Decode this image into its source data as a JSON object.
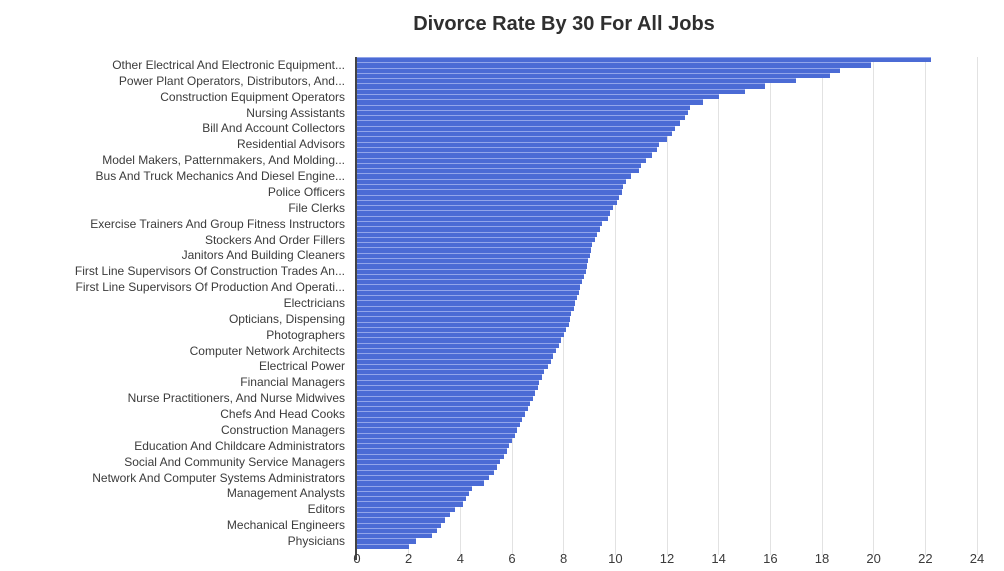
{
  "title": "Divorce Rate By 30 For All Jobs",
  "chart_data": {
    "type": "bar",
    "orientation": "horizontal",
    "title": "Divorce Rate By 30 For All Jobs",
    "xlabel": "",
    "ylabel": "",
    "xlim": [
      0,
      24
    ],
    "x_ticks": [
      0,
      2,
      4,
      6,
      8,
      10,
      12,
      14,
      16,
      18,
      20,
      22,
      24
    ],
    "grid": true,
    "sort": "descending",
    "legend": "none",
    "bar_color": "#4b6bd5",
    "bar_separator_color": "#92a5ea",
    "grid_color": "#e2e2e2",
    "axis_line_color": "#444444",
    "label_color": "#3b3b3b",
    "n_bars": 93,
    "values": [
      22.2,
      19.9,
      18.7,
      18.3,
      17.0,
      15.8,
      15.0,
      14.0,
      13.4,
      12.9,
      12.8,
      12.7,
      12.5,
      12.3,
      12.2,
      12.0,
      11.7,
      11.6,
      11.4,
      11.2,
      11.0,
      10.9,
      10.6,
      10.4,
      10.3,
      10.25,
      10.15,
      10.05,
      9.9,
      9.8,
      9.7,
      9.5,
      9.4,
      9.3,
      9.2,
      9.1,
      9.05,
      9.0,
      8.95,
      8.9,
      8.85,
      8.8,
      8.7,
      8.65,
      8.6,
      8.5,
      8.45,
      8.4,
      8.3,
      8.25,
      8.2,
      8.1,
      8.0,
      7.9,
      7.8,
      7.7,
      7.6,
      7.5,
      7.4,
      7.25,
      7.15,
      7.05,
      7.0,
      6.9,
      6.8,
      6.7,
      6.6,
      6.5,
      6.4,
      6.3,
      6.2,
      6.1,
      6.0,
      5.9,
      5.8,
      5.7,
      5.55,
      5.4,
      5.3,
      5.1,
      4.9,
      4.45,
      4.35,
      4.2,
      4.1,
      3.8,
      3.6,
      3.4,
      3.25,
      3.1,
      2.9,
      2.3,
      2.0
    ],
    "y_tick_every": 3,
    "y_tick_first_bar_index": 1,
    "y_tick_labels": [
      "Other Electrical And Electronic Equipment...",
      "Power Plant Operators, Distributors, And...",
      "Construction Equipment Operators",
      "Nursing Assistants",
      "Bill And Account Collectors",
      "Residential Advisors",
      "Model Makers, Patternmakers, And Molding...",
      "Bus And Truck Mechanics And Diesel Engine...",
      "Police Officers",
      "File Clerks",
      "Exercise Trainers And Group Fitness Instructors",
      "Stockers And Order Fillers",
      "Janitors And Building Cleaners",
      "First Line Supervisors Of Construction Trades An...",
      "First Line Supervisors Of Production And Operati...",
      "Electricians",
      "Opticians, Dispensing",
      "Photographers",
      "Computer Network Architects",
      "Electrical Power",
      "Financial Managers",
      "Nurse Practitioners, And Nurse Midwives",
      "Chefs And Head Cooks",
      "Construction Managers",
      "Education And Childcare Administrators",
      "Social And Community Service Managers",
      "Network And Computer Systems Administrators",
      "Management Analysts",
      "Editors",
      "Mechanical Engineers",
      "Physicians"
    ]
  }
}
